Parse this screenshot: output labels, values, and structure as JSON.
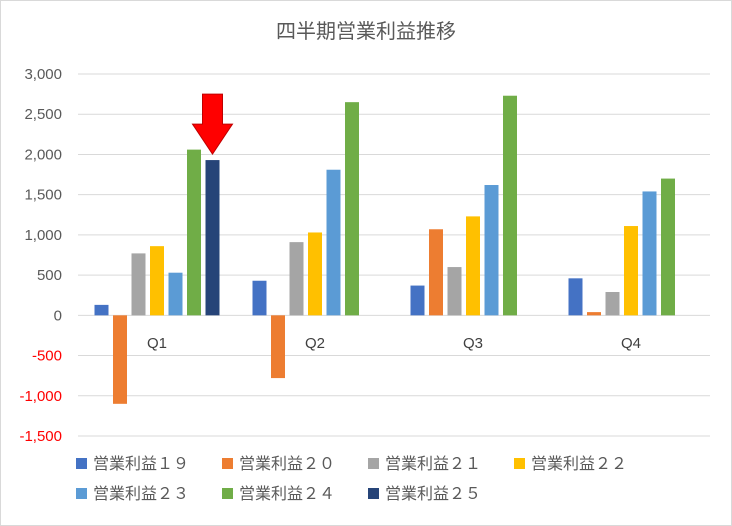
{
  "chart_data": {
    "type": "bar",
    "title": "四半期営業利益推移",
    "categories": [
      "Q1",
      "Q2",
      "Q3",
      "Q4"
    ],
    "ylim": [
      -1500,
      3000
    ],
    "yticks": [
      3000,
      2500,
      2000,
      1500,
      1000,
      500,
      0,
      -500,
      -1000,
      -1500
    ],
    "ytick_labels": [
      "3,000",
      "2,500",
      "2,000",
      "1,500",
      "1,000",
      "500",
      "0",
      "-500",
      "-1,000",
      "-1,500"
    ],
    "grid": true,
    "legend_position": "bottom",
    "series": [
      {
        "name": "営業利益１９",
        "color": "#4472C4",
        "values": [
          130,
          430,
          370,
          460
        ]
      },
      {
        "name": "営業利益２０",
        "color": "#ED7D31",
        "values": [
          -1100,
          -780,
          1070,
          40
        ]
      },
      {
        "name": "営業利益２１",
        "color": "#A5A5A5",
        "values": [
          770,
          910,
          600,
          290
        ]
      },
      {
        "name": "営業利益２２",
        "color": "#FFC000",
        "values": [
          860,
          1030,
          1230,
          1110
        ]
      },
      {
        "name": "営業利益２３",
        "color": "#5B9BD5",
        "values": [
          530,
          1810,
          1620,
          1540
        ]
      },
      {
        "name": "営業利益２４",
        "color": "#70AD47",
        "values": [
          2060,
          2650,
          2730,
          1700
        ]
      },
      {
        "name": "営業利益２５",
        "color": "#264478",
        "values": [
          1930,
          null,
          null,
          null
        ]
      }
    ],
    "annotation": {
      "type": "arrow",
      "target": "営業利益２５ Q1",
      "color": "#ff0000"
    }
  }
}
